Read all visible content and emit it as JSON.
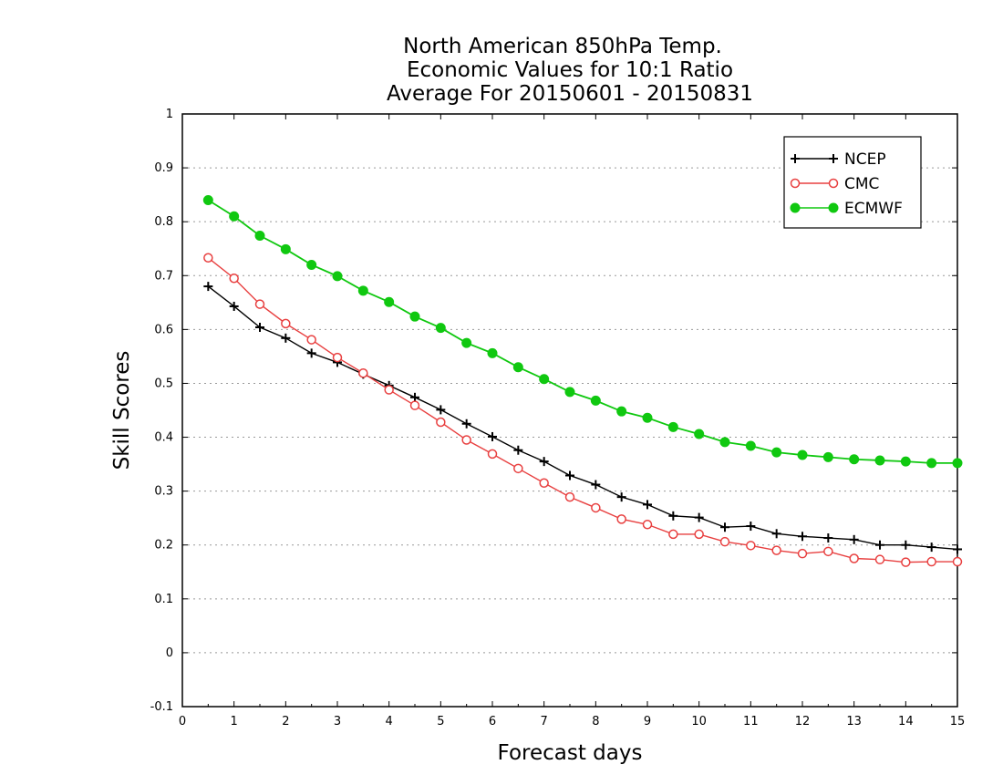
{
  "chart_data": {
    "type": "line",
    "title_lines": [
      "North American 850hPa Temp.",
      "Economic Values for 10:1 Ratio",
      "Average For 20150601 - 20150831"
    ],
    "xlabel": "Forecast days",
    "ylabel": "Skill Scores",
    "xlim": [
      0,
      15
    ],
    "ylim": [
      -0.1,
      1
    ],
    "x_ticks": [
      "0",
      "1",
      "2",
      "3",
      "4",
      "5",
      "6",
      "7",
      "8",
      "9",
      "10",
      "11",
      "12",
      "13",
      "14",
      "15"
    ],
    "y_ticks": [
      "-0.1",
      "0",
      "0.1",
      "0.2",
      "0.3",
      "0.4",
      "0.5",
      "0.6",
      "0.7",
      "0.8",
      "0.9",
      "1"
    ],
    "grid": true,
    "legend_position": "top-right",
    "x": [
      0.5,
      1,
      1.5,
      2,
      2.5,
      3,
      3.5,
      4,
      4.5,
      5,
      5.5,
      6,
      6.5,
      7,
      7.5,
      8,
      8.5,
      9,
      9.5,
      10,
      10.5,
      11,
      11.5,
      12,
      12.5,
      13,
      13.5,
      14,
      14.5,
      15
    ],
    "series": [
      {
        "name": "NCEP",
        "color": "#000000",
        "marker": "plus",
        "values": [
          0.68,
          0.643,
          0.604,
          0.584,
          0.556,
          0.539,
          0.517,
          0.496,
          0.474,
          0.451,
          0.425,
          0.401,
          0.376,
          0.355,
          0.329,
          0.312,
          0.289,
          0.275,
          0.254,
          0.251,
          0.233,
          0.235,
          0.221,
          0.216,
          0.213,
          0.21,
          0.2,
          0.2,
          0.196,
          0.192
        ]
      },
      {
        "name": "CMC",
        "color": "#e84040",
        "marker": "open-circle",
        "values": [
          0.733,
          0.695,
          0.647,
          0.611,
          0.581,
          0.548,
          0.519,
          0.488,
          0.459,
          0.428,
          0.395,
          0.369,
          0.342,
          0.315,
          0.289,
          0.269,
          0.248,
          0.238,
          0.22,
          0.22,
          0.206,
          0.199,
          0.19,
          0.184,
          0.188,
          0.175,
          0.173,
          0.168,
          0.169,
          0.169
        ]
      },
      {
        "name": "ECMWF",
        "color": "#10c810",
        "marker": "filled-circle",
        "values": [
          0.84,
          0.81,
          0.774,
          0.749,
          0.72,
          0.699,
          0.672,
          0.651,
          0.624,
          0.603,
          0.575,
          0.556,
          0.53,
          0.508,
          0.484,
          0.468,
          0.448,
          0.436,
          0.419,
          0.406,
          0.391,
          0.384,
          0.372,
          0.367,
          0.363,
          0.359,
          0.357,
          0.355,
          0.352,
          0.352
        ]
      }
    ]
  }
}
